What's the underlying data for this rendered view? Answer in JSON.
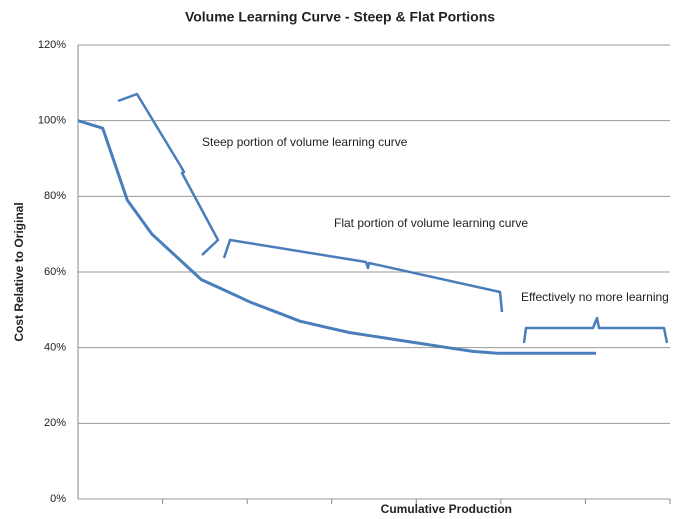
{
  "chart_data": {
    "type": "line",
    "title": "Volume Learning Curve - Steep & Flat Portions",
    "x_label": "Cumulative Production",
    "y_label": "Cost Relative to Original",
    "categories": [
      null,
      null,
      null,
      null,
      null,
      null,
      null,
      null,
      null,
      null,
      null,
      null,
      null,
      null,
      null,
      null,
      null,
      null,
      null,
      null,
      null,
      null,
      null,
      null,
      null
    ],
    "values": [
      100,
      98,
      79,
      70,
      64,
      58,
      55,
      52,
      49.5,
      47,
      45.5,
      44,
      43,
      42,
      41,
      40,
      39,
      38.5,
      38.5,
      38.5,
      38.5,
      38.5,
      null,
      null,
      null
    ],
    "color": "#4a7ebb",
    "ylim": [
      0,
      120
    ],
    "yticks": [
      {
        "value": 0,
        "label": "0%"
      },
      {
        "value": 20,
        "label": "20%"
      },
      {
        "value": 40,
        "label": "40%"
      },
      {
        "value": 60,
        "label": "60%"
      },
      {
        "value": 80,
        "label": "80%"
      },
      {
        "value": 100,
        "label": "100%"
      },
      {
        "value": 120,
        "label": "120%"
      }
    ],
    "grid": true,
    "annotations": [
      "Steep portion of volume learning curve",
      "Flat portion of volume learning curve",
      "Effectively no more learning"
    ]
  }
}
